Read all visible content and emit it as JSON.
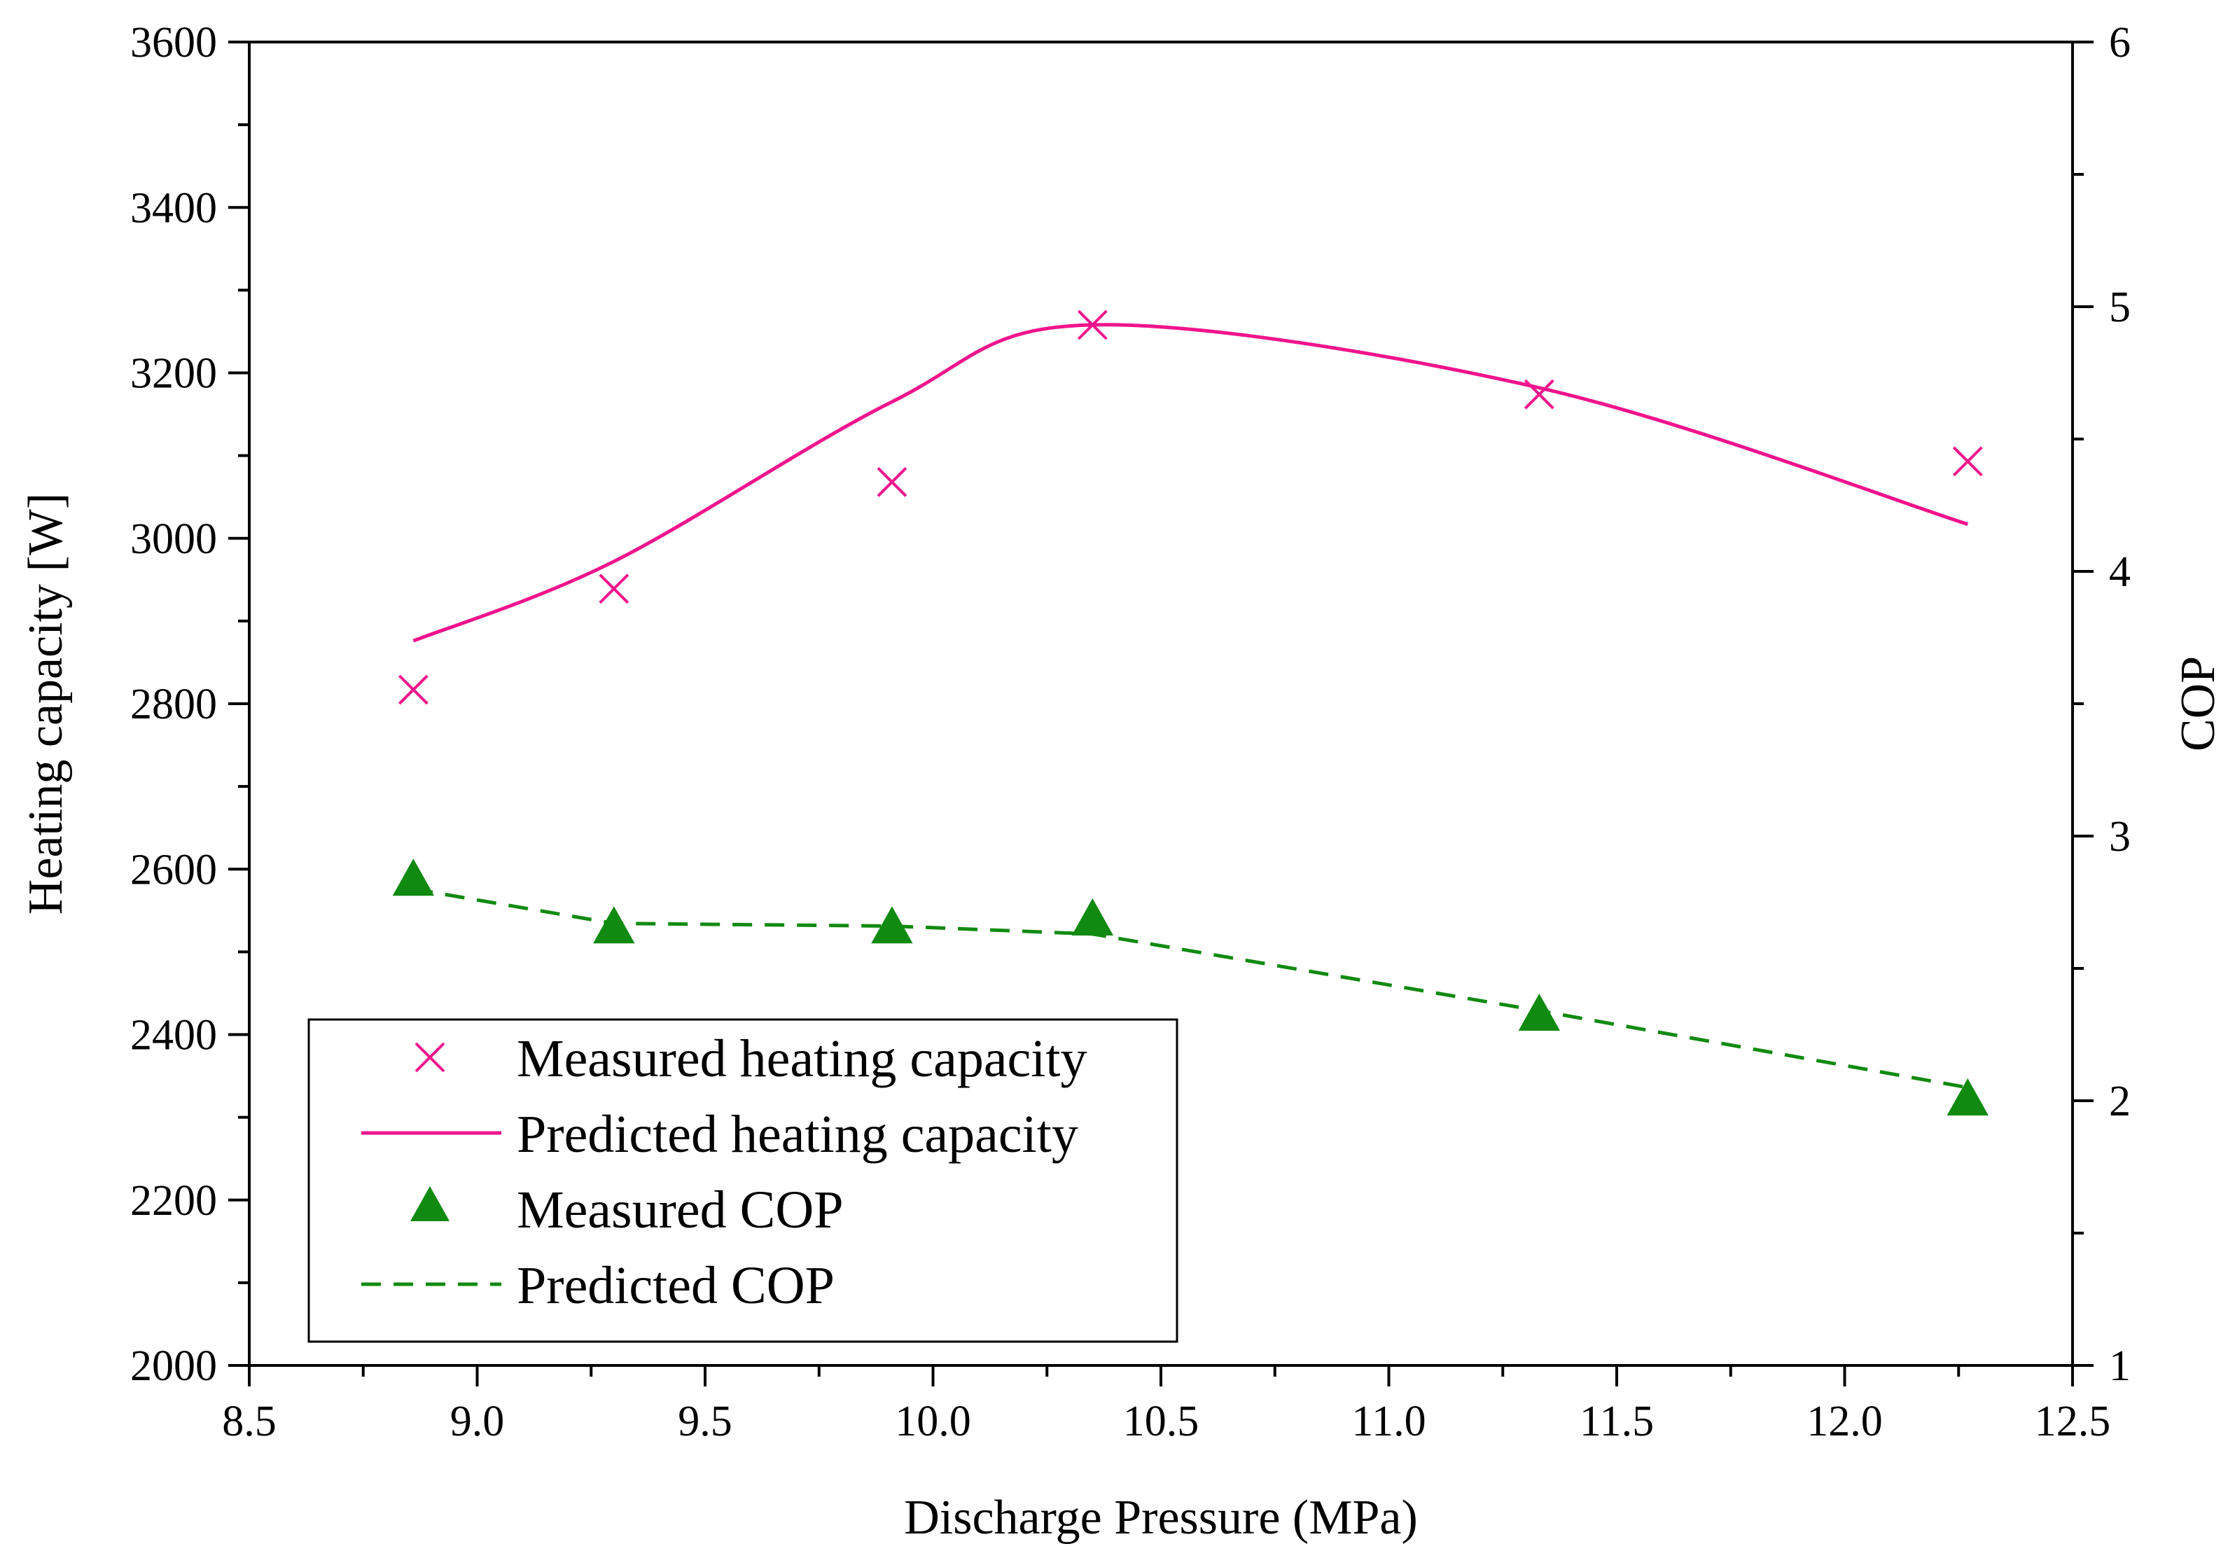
{
  "chart_data": {
    "type": "line",
    "title": "",
    "xlabel": "Discharge Pressure (MPa)",
    "ylabel_left": "Heating capacity [W]",
    "ylabel_right": "COP",
    "xlim": [
      8.5,
      12.5
    ],
    "ylim_left": [
      2000,
      3600
    ],
    "ylim_right": [
      1,
      6
    ],
    "x_ticks": [
      "8.5",
      "9.0",
      "9.5",
      "10.0",
      "10.5",
      "11.0",
      "11.5",
      "12.0",
      "12.5"
    ],
    "y_left_ticks": [
      "2000",
      "2200",
      "2400",
      "2600",
      "2800",
      "3000",
      "3200",
      "3400",
      "3600"
    ],
    "y_right_ticks": [
      "1",
      "2",
      "3",
      "4",
      "5",
      "6"
    ],
    "grid": false,
    "legend_position": "bottom-left",
    "colors": {
      "heating": "#f0148c",
      "cop": "#118a11"
    },
    "series": [
      {
        "name": "Measured heating capacity",
        "axis": "left",
        "marker": "x",
        "x": [
          8.86,
          9.3,
          9.91,
          10.35,
          11.33,
          12.27
        ],
        "y": [
          2817,
          2939,
          3068,
          3258,
          3174,
          3093
        ]
      },
      {
        "name": "Predicted heating capacity",
        "axis": "left",
        "line": "solid",
        "x": [
          8.86,
          9.3,
          9.91,
          10.35,
          11.33,
          12.27
        ],
        "y": [
          2876,
          2972,
          3165,
          3258,
          3182,
          3017
        ]
      },
      {
        "name": "Measured COP",
        "axis": "right",
        "marker": "triangle",
        "x": [
          8.86,
          9.3,
          9.91,
          10.35,
          11.33,
          12.27
        ],
        "y": [
          2.83,
          2.65,
          2.65,
          2.68,
          2.32,
          2.0
        ]
      },
      {
        "name": "Predicted COP",
        "axis": "right",
        "line": "dashed",
        "x": [
          8.86,
          9.3,
          9.91,
          10.35,
          11.33,
          12.27
        ],
        "y": [
          2.8,
          2.67,
          2.66,
          2.63,
          2.34,
          2.05
        ]
      }
    ]
  }
}
